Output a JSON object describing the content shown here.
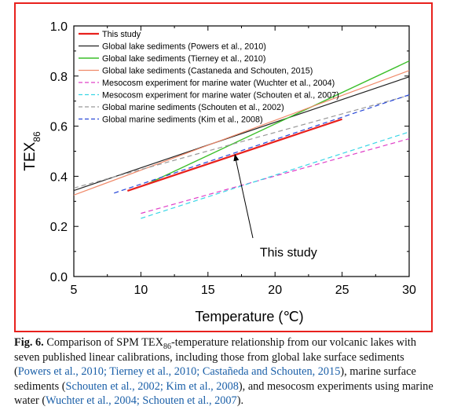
{
  "chart_data": {
    "type": "line",
    "xlabel": "Temperature (℃)",
    "ylabel": "TEX",
    "ylabel_sub": "86",
    "xlim": [
      5,
      30
    ],
    "ylim": [
      0.0,
      1.0
    ],
    "xticks": [
      "5",
      "10",
      "15",
      "20",
      "25",
      "30"
    ],
    "yticks": [
      "0.0",
      "0.2",
      "0.4",
      "0.6",
      "0.8",
      "1.0"
    ],
    "grid": false,
    "legend_position": "top-left",
    "annotation": {
      "text": "This study",
      "arrow_to": [
        17,
        0.49
      ],
      "text_at": [
        21,
        0.08
      ]
    },
    "series": [
      {
        "name": "This study",
        "color": "#e8211d",
        "dash": "solid",
        "width": 2.2,
        "x": [
          9,
          25
        ],
        "y": [
          0.342,
          0.628
        ]
      },
      {
        "name": "Global lake sediments (Powers et al., 2010)",
        "color": "#222222",
        "dash": "solid",
        "width": 1.2,
        "x": [
          5,
          30
        ],
        "y": [
          0.343,
          0.797
        ]
      },
      {
        "name": "Global lake sediments (Tierney et al., 2010)",
        "color": "#3cbf2a",
        "dash": "solid",
        "width": 1.4,
        "x": [
          10.5,
          30
        ],
        "y": [
          0.37,
          0.86
        ]
      },
      {
        "name": "Global lake sediments (Castaneda and Schouten, 2015)",
        "color": "#f08a6a",
        "dash": "solid",
        "width": 1.2,
        "x": [
          5,
          30
        ],
        "y": [
          0.325,
          0.822
        ]
      },
      {
        "name": "Mesocosm experiment for marine water (Wuchter et al., 2004)",
        "color": "#e040c8",
        "dash": "dashed",
        "width": 1.2,
        "x": [
          10,
          30
        ],
        "y": [
          0.252,
          0.55
        ]
      },
      {
        "name": "Mesocosm experiment for marine water (Schouten et al., 2007)",
        "color": "#3ad6e6",
        "dash": "dashed",
        "width": 1.2,
        "x": [
          10,
          30
        ],
        "y": [
          0.232,
          0.577
        ]
      },
      {
        "name": "Global marine sediments (Schouten et al., 2002)",
        "color": "#999999",
        "dash": "dashed",
        "width": 1.2,
        "x": [
          5,
          30
        ],
        "y": [
          0.353,
          0.723
        ]
      },
      {
        "name": "Global marine sediments (Kim et al., 2008)",
        "color": "#2848d8",
        "dash": "dashed",
        "width": 1.2,
        "x": [
          8,
          30
        ],
        "y": [
          0.333,
          0.725
        ]
      }
    ]
  },
  "caption": {
    "label": "Fig. 6.",
    "text_1": "Comparison of SPM TEX",
    "sub": "86",
    "text_2": "-temperature relationship from our volcanic lakes with seven published linear calibrations, including those from global lake surface sediments (",
    "cite_1": "Powers et al., 2010; Tierney et al., 2010; Castañeda and Schouten, 2015",
    "text_3": "), marine surface sediments (",
    "cite_2": "Schouten et al., 2002; Kim et al., 2008",
    "text_4": "), and mesocosm experiments using marine water (",
    "cite_3": "Wuchter et al., 2004; Schouten et al., 2007",
    "text_5": ")."
  }
}
